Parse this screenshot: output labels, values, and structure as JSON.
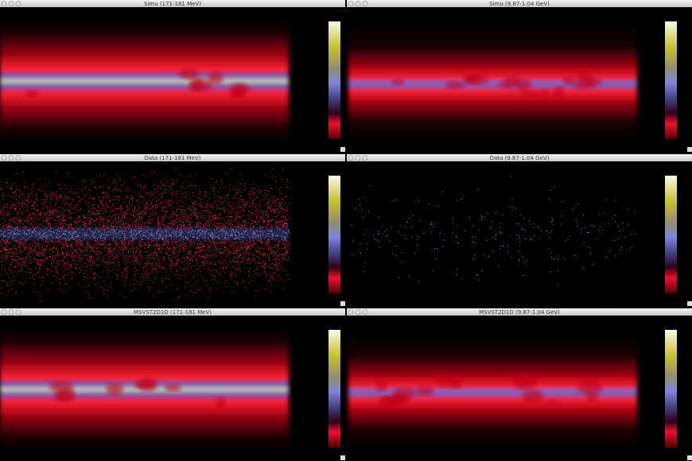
{
  "windows": [
    {
      "title": "Simu (171-181 MeV)"
    },
    {
      "title": "Simu (9.87-1.04 GeV)"
    },
    {
      "title": "Data (171-181 MeV)"
    },
    {
      "title": "Data (9.87-1.04 GeV)"
    },
    {
      "title": "MSVST2D1D (171-181 MeV)"
    },
    {
      "title": "MSVST2D1D (9.87-1.04 GeV)"
    }
  ]
}
